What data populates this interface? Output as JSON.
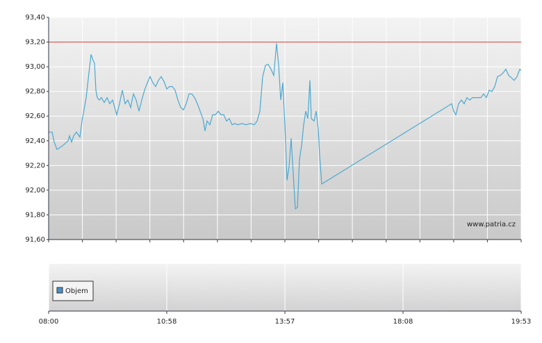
{
  "chart_data": {
    "type": "line",
    "watermark": "www.patria.cz",
    "volume_legend": "Objem",
    "volume_color": "#4a90c8",
    "xlim": [
      0,
      680
    ],
    "xticks": [
      {
        "value": 0,
        "label": "08:00"
      },
      {
        "value": 170,
        "label": "10:58"
      },
      {
        "value": 340,
        "label": "13:57"
      },
      {
        "value": 510,
        "label": "18:08"
      },
      {
        "value": 680,
        "label": "19:53"
      }
    ],
    "xminorticks": [
      0,
      48.6,
      97.1,
      145.7,
      194.3,
      242.9,
      291.4,
      340,
      388.6,
      437.1,
      485.7,
      534.3,
      582.9,
      631.4,
      680
    ],
    "ylim": [
      91.6,
      93.4
    ],
    "yticks": [
      {
        "value": 91.6,
        "label": "91,60"
      },
      {
        "value": 91.8,
        "label": "91,80"
      },
      {
        "value": 92.0,
        "label": "92,00"
      },
      {
        "value": 92.2,
        "label": "92,20"
      },
      {
        "value": 92.4,
        "label": "92,40"
      },
      {
        "value": 92.6,
        "label": "92,60"
      },
      {
        "value": 92.8,
        "label": "92,80"
      },
      {
        "value": 93.0,
        "label": "93,00"
      },
      {
        "value": 93.2,
        "label": "93,20"
      },
      {
        "value": 93.4,
        "label": "93,40"
      }
    ],
    "grid": true,
    "reference_line": {
      "value": 93.2,
      "color": "#e05050"
    },
    "color": "#4aa8d0",
    "x": [
      0,
      5,
      8,
      12,
      20,
      28,
      30,
      33,
      36,
      40,
      45,
      48,
      54,
      58,
      61,
      64,
      66,
      68,
      70,
      73,
      76,
      80,
      84,
      88,
      92,
      95,
      98,
      102,
      106,
      110,
      114,
      118,
      122,
      126,
      130,
      134,
      138,
      142,
      146,
      150,
      154,
      158,
      162,
      166,
      170,
      174,
      178,
      182,
      186,
      190,
      194,
      198,
      202,
      206,
      210,
      214,
      218,
      222,
      225,
      228,
      232,
      236,
      240,
      244,
      248,
      252,
      256,
      260,
      264,
      268,
      272,
      278,
      284,
      290,
      296,
      300,
      304,
      308,
      312,
      316,
      320,
      324,
      328,
      331,
      334,
      337,
      340,
      343,
      346,
      349,
      352,
      355,
      358,
      361,
      364,
      367,
      370,
      373,
      376,
      378,
      382,
      385,
      388,
      390,
      393,
      580,
      583,
      586,
      590,
      594,
      598,
      602,
      606,
      610,
      614,
      618,
      622,
      626,
      630,
      634,
      638,
      642,
      646,
      650,
      654,
      658,
      662,
      666,
      670,
      674,
      678,
      680
    ],
    "values": [
      92.47,
      92.47,
      92.39,
      92.33,
      92.36,
      92.4,
      92.44,
      92.39,
      92.44,
      92.47,
      92.43,
      92.56,
      92.75,
      92.95,
      93.1,
      93.05,
      93.03,
      92.81,
      92.75,
      92.73,
      92.75,
      92.71,
      92.75,
      92.7,
      92.73,
      92.67,
      92.61,
      92.7,
      92.81,
      92.7,
      92.73,
      92.67,
      92.78,
      92.73,
      92.64,
      92.73,
      92.81,
      92.87,
      92.92,
      92.87,
      92.84,
      92.89,
      92.92,
      92.88,
      92.82,
      92.84,
      92.84,
      92.81,
      92.73,
      92.67,
      92.65,
      92.7,
      92.78,
      92.78,
      92.75,
      92.7,
      92.64,
      92.58,
      92.48,
      92.56,
      92.53,
      92.61,
      92.61,
      92.64,
      92.61,
      92.61,
      92.56,
      92.58,
      92.53,
      92.54,
      92.53,
      92.54,
      92.53,
      92.54,
      92.53,
      92.56,
      92.64,
      92.92,
      93.01,
      93.02,
      92.98,
      92.93,
      93.19,
      93.01,
      92.73,
      92.87,
      92.53,
      92.08,
      92.19,
      92.42,
      92.13,
      91.85,
      91.86,
      92.25,
      92.36,
      92.53,
      92.64,
      92.58,
      92.89,
      92.58,
      92.56,
      92.64,
      92.5,
      92.28,
      92.05,
      92.7,
      92.64,
      92.61,
      92.7,
      92.73,
      92.7,
      92.75,
      92.73,
      92.75,
      92.75,
      92.75,
      92.75,
      92.78,
      92.75,
      92.81,
      92.8,
      92.84,
      92.92,
      92.93,
      92.95,
      92.98,
      92.93,
      92.91,
      92.89,
      92.92,
      92.98,
      92.97
    ]
  }
}
